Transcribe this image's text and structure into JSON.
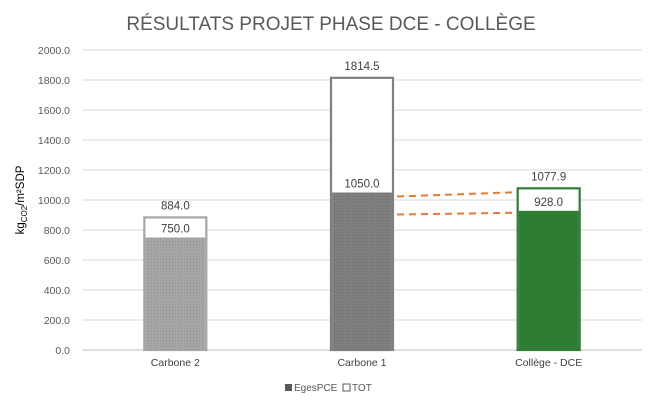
{
  "chart_data": {
    "type": "bar",
    "title": "RÉSULTATS PROJET PHASE DCE - COLLÈGE",
    "ylabel": "kgCO2/m²SDP",
    "ylabel_parts": {
      "main": "kg",
      "sub": "CO2",
      "rest": "/m²SDP"
    },
    "ylim": [
      0,
      2000
    ],
    "ytick_step": 200,
    "ytick_labels": [
      "0.0",
      "200.0",
      "400.0",
      "600.0",
      "800.0",
      "1000.0",
      "1200.0",
      "1400.0",
      "1600.0",
      "1800.0",
      "2000.0"
    ],
    "grid": true,
    "legend_position": "bottom",
    "categories": [
      "Carbone 2",
      "Carbone 1",
      "Collège - DCE"
    ],
    "series": [
      {
        "name": "EgesPCE",
        "values": [
          750.0,
          1050.0,
          928.0
        ],
        "labels": [
          "750.0",
          "1050.0",
          "928.0"
        ]
      },
      {
        "name": "TOT",
        "values": [
          884.0,
          1814.5,
          1077.9
        ],
        "labels": [
          "884.0",
          "1814.5",
          "1077.9"
        ]
      }
    ],
    "colors": {
      "egespce": [
        "#a6a6a6",
        "#7f7f7f",
        "#2e7d32"
      ],
      "tot_border": [
        "#a6a6a6",
        "#7f7f7f",
        "#2e7d32"
      ],
      "reference_lines": "#e07b39",
      "grid": "#d9d9d9"
    }
  }
}
